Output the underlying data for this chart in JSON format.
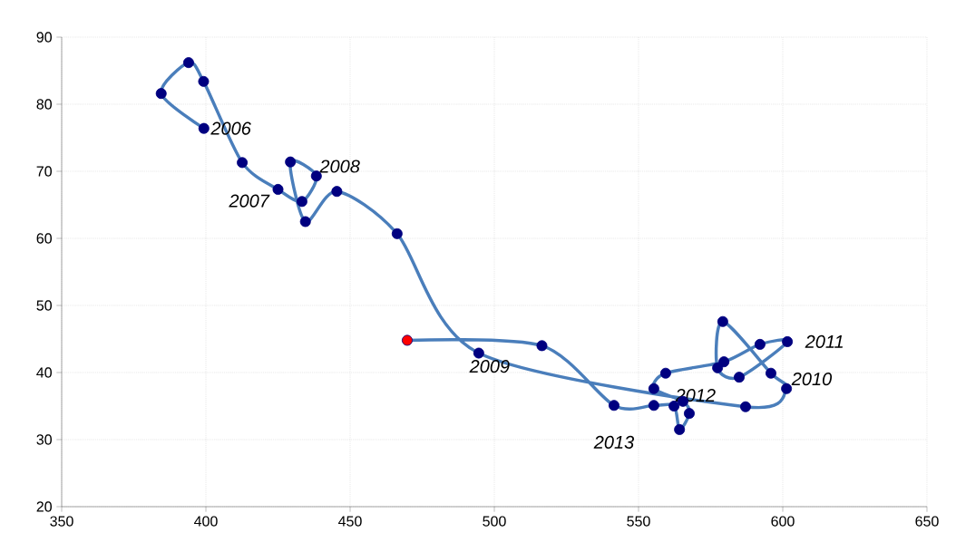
{
  "chart_data": {
    "type": "line",
    "x": [
      399.3,
      384.5,
      394,
      399.2,
      412.6,
      425,
      433.3,
      438.3,
      429.3,
      434.5,
      445.4,
      466.3,
      494.6,
      587.1,
      601.3,
      595.9,
      579.2,
      577.4,
      584.9,
      601.6,
      592.1,
      579.6,
      559.4,
      555.3,
      565.4,
      567.6,
      564.2,
      562.3,
      555.3,
      541.5,
      516.5,
      469.8
    ],
    "series": [
      {
        "color": "#4a7ebb",
        "values": [
          76.4,
          81.6,
          86.2,
          83.4,
          71.3,
          67.3,
          65.5,
          69.3,
          71.4,
          62.5,
          67.0,
          60.7,
          42.9,
          34.9,
          37.6,
          39.9,
          47.6,
          40.7,
          39.3,
          44.6,
          44.2,
          41.6,
          39.9,
          37.6,
          35.7,
          33.9,
          31.5,
          35.0,
          35.1,
          35.1,
          44.0,
          44.8
        ],
        "colors": [
          "#000080",
          "#000080",
          "#000080",
          "#000080",
          "#000080",
          "#000080",
          "#000080",
          "#000080",
          "#000080",
          "#000080",
          "#000080",
          "#000080",
          "#000080",
          "#000080",
          "#000080",
          "#000080",
          "#000080",
          "#000080",
          "#000080",
          "#000080",
          "#000080",
          "#000080",
          "#000080",
          "#000080",
          "#000080",
          "#000080",
          "#000080",
          "#000080",
          "#000080",
          "#000080",
          "#000080",
          "#ff0000"
        ]
      }
    ],
    "marker": "circle",
    "xlim": [
      350,
      650
    ],
    "xticks": [
      350,
      400,
      450,
      500,
      550,
      600,
      650
    ],
    "ylim": [
      20,
      90
    ],
    "yticks": [
      20,
      30,
      40,
      50,
      60,
      70,
      80,
      90
    ],
    "grid": true,
    "annotations": [
      {
        "text": "2006",
        "x": 399.3,
        "y": 76.4
      },
      {
        "text": "2008",
        "x": 438.3,
        "y": 69.3
      },
      {
        "text": "2007",
        "x": 425,
        "y": 67.3
      },
      {
        "text": "2009",
        "x": 494.6,
        "y": 42.9
      },
      {
        "text": "2011",
        "x": 601.6,
        "y": 44.6
      },
      {
        "text": "2010",
        "x": 601.3,
        "y": 37.6
      },
      {
        "text": "2012",
        "x": 565.4,
        "y": 35.7
      },
      {
        "text": "2013",
        "x": 541.5,
        "y": 35.1
      }
    ]
  }
}
